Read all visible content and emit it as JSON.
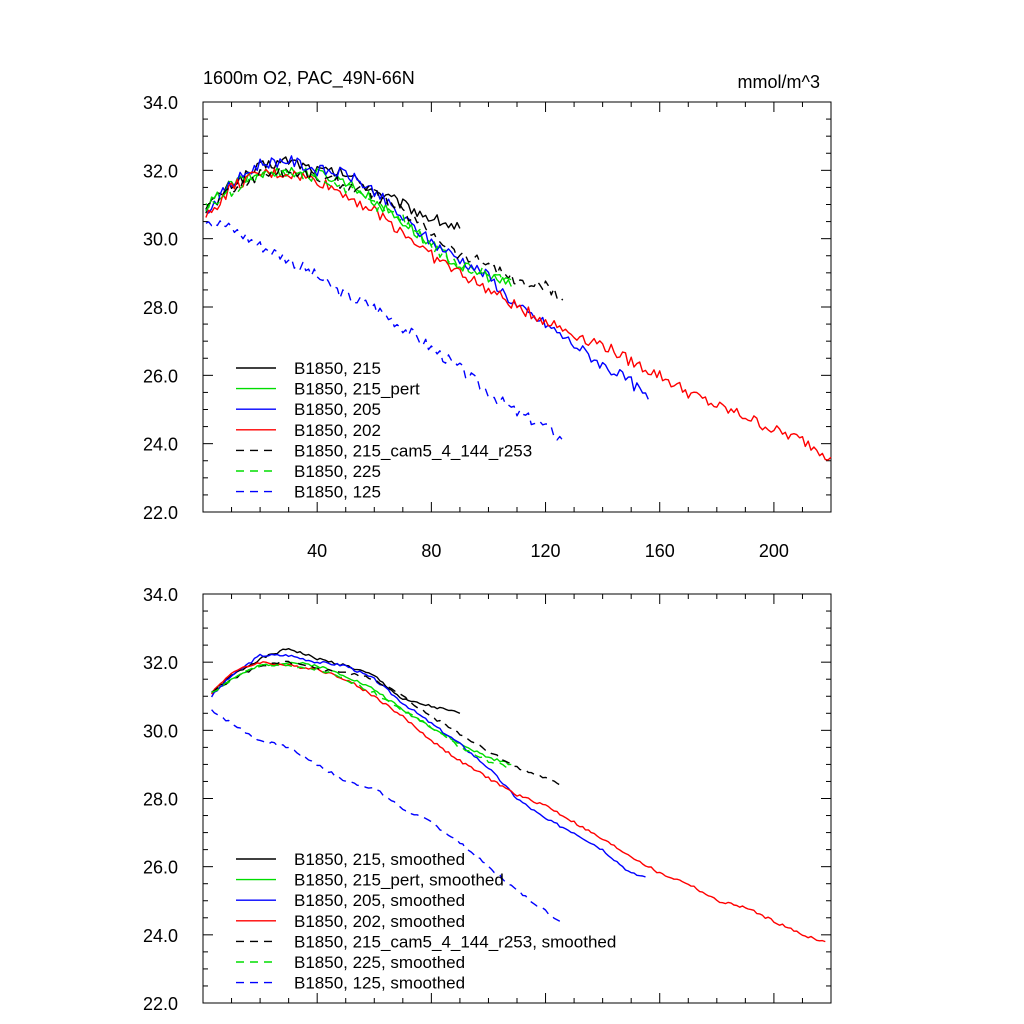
{
  "chart_data": [
    {
      "type": "line",
      "title": "1600m O2, PAC_49N-66N",
      "unit_label": "mmol/m^3",
      "xlim": [
        0,
        220
      ],
      "ylim": [
        22.0,
        34.0
      ],
      "x_ticks": [
        40,
        80,
        120,
        160,
        200
      ],
      "x_tick_labels": [
        "40",
        "80",
        "120",
        "160",
        "200"
      ],
      "y_ticks": [
        22.0,
        24.0,
        26.0,
        28.0,
        30.0,
        32.0,
        34.0
      ],
      "y_tick_labels": [
        "22.0",
        "24.0",
        "26.0",
        "28.0",
        "30.0",
        "32.0",
        "34.0"
      ],
      "legend_position": "bottom-left",
      "series": [
        {
          "name": "B1850, 215",
          "color": "#000000",
          "dash": "solid",
          "x": [
            1,
            10,
            20,
            30,
            40,
            50,
            60,
            70,
            80,
            90
          ],
          "y": [
            30.9,
            31.6,
            32.1,
            32.3,
            32.0,
            31.9,
            31.4,
            31.0,
            30.6,
            30.3
          ]
        },
        {
          "name": "B1850, 215_pert",
          "color": "#00dd00",
          "dash": "solid",
          "x": [
            1,
            10,
            20,
            30,
            40,
            50,
            60,
            70,
            80,
            90,
            100,
            108
          ],
          "y": [
            30.9,
            31.6,
            31.9,
            32.0,
            31.9,
            31.7,
            31.1,
            30.5,
            29.8,
            29.2,
            28.9,
            28.6
          ]
        },
        {
          "name": "B1850, 205",
          "color": "#0000ff",
          "dash": "solid",
          "x": [
            1,
            10,
            20,
            30,
            40,
            50,
            60,
            70,
            80,
            90,
            100,
            110,
            120,
            130,
            140,
            150,
            156
          ],
          "y": [
            30.8,
            31.6,
            32.2,
            32.3,
            32.0,
            31.9,
            31.4,
            30.6,
            29.9,
            29.4,
            28.9,
            28.0,
            27.5,
            26.9,
            26.3,
            25.8,
            25.3
          ]
        },
        {
          "name": "B1850, 202",
          "color": "#ff0000",
          "dash": "solid",
          "x": [
            1,
            10,
            20,
            30,
            40,
            50,
            60,
            70,
            80,
            90,
            100,
            110,
            120,
            130,
            140,
            150,
            160,
            170,
            180,
            190,
            200,
            210,
            220
          ],
          "y": [
            30.6,
            31.5,
            31.9,
            31.9,
            31.7,
            31.3,
            30.8,
            30.2,
            29.5,
            29.0,
            28.5,
            28.0,
            27.6,
            27.2,
            26.9,
            26.4,
            26.0,
            25.5,
            25.1,
            24.8,
            24.4,
            24.1,
            23.6
          ]
        },
        {
          "name": "B1850, 215_cam5_4_144_r253",
          "color": "#000000",
          "dash": "dashed",
          "x": [
            1,
            10,
            20,
            30,
            40,
            50,
            60,
            70,
            80,
            90,
            100,
            110,
            120,
            126
          ],
          "y": [
            30.9,
            31.4,
            31.9,
            32.0,
            31.8,
            31.6,
            31.3,
            30.8,
            30.2,
            29.5,
            29.3,
            28.7,
            28.6,
            28.2
          ]
        },
        {
          "name": "B1850, 225",
          "color": "#00dd00",
          "dash": "dashed",
          "x": [
            1,
            10,
            20,
            30,
            40,
            50,
            60,
            70,
            80,
            90,
            100,
            108
          ],
          "y": [
            30.9,
            31.4,
            31.8,
            31.9,
            31.8,
            31.5,
            31.0,
            30.6,
            29.8,
            29.2,
            29.0,
            28.8
          ]
        },
        {
          "name": "B1850, 125",
          "color": "#0000ff",
          "dash": "dashed",
          "x": [
            1,
            10,
            20,
            30,
            40,
            50,
            60,
            70,
            80,
            90,
            100,
            110,
            120,
            126
          ],
          "y": [
            30.6,
            30.3,
            29.8,
            29.4,
            28.9,
            28.3,
            28.0,
            27.4,
            26.8,
            26.2,
            25.5,
            24.9,
            24.5,
            24.1
          ]
        }
      ]
    },
    {
      "type": "line",
      "xlim": [
        0,
        220
      ],
      "ylim": [
        22.0,
        34.0
      ],
      "y_ticks": [
        22.0,
        24.0,
        26.0,
        28.0,
        30.0,
        32.0,
        34.0
      ],
      "y_tick_labels": [
        "22.0",
        "24.0",
        "26.0",
        "28.0",
        "30.0",
        "32.0",
        "34.0"
      ],
      "legend_position": "bottom-left",
      "series": [
        {
          "name": "B1850, 215, smoothed",
          "color": "#000000",
          "dash": "solid",
          "x": [
            3,
            10,
            20,
            30,
            40,
            50,
            60,
            70,
            80,
            90
          ],
          "y": [
            31.1,
            31.6,
            32.1,
            32.4,
            32.1,
            31.9,
            31.6,
            30.9,
            30.7,
            30.5
          ]
        },
        {
          "name": "B1850, 215_pert, smoothed",
          "color": "#00dd00",
          "dash": "solid",
          "x": [
            3,
            10,
            20,
            30,
            40,
            50,
            60,
            70,
            80,
            90,
            100,
            108
          ],
          "y": [
            31.1,
            31.5,
            31.9,
            32.0,
            31.9,
            31.6,
            31.2,
            30.6,
            30.1,
            29.6,
            29.2,
            29.0
          ]
        },
        {
          "name": "B1850, 205, smoothed",
          "color": "#0000ff",
          "dash": "solid",
          "x": [
            3,
            10,
            20,
            30,
            40,
            50,
            60,
            70,
            80,
            90,
            100,
            110,
            120,
            130,
            140,
            150,
            155
          ],
          "y": [
            31.0,
            31.6,
            32.2,
            32.2,
            32.0,
            31.9,
            31.5,
            30.8,
            30.2,
            29.6,
            28.9,
            28.0,
            27.4,
            27.0,
            26.5,
            25.8,
            25.7
          ]
        },
        {
          "name": "B1850, 202, smoothed",
          "color": "#ff0000",
          "dash": "solid",
          "x": [
            3,
            10,
            20,
            30,
            40,
            50,
            60,
            70,
            80,
            90,
            100,
            110,
            120,
            130,
            140,
            150,
            160,
            170,
            180,
            190,
            200,
            210,
            218
          ],
          "y": [
            31.1,
            31.7,
            32.0,
            31.9,
            31.8,
            31.5,
            31.0,
            30.4,
            29.7,
            29.1,
            28.6,
            28.1,
            27.8,
            27.3,
            26.8,
            26.3,
            25.8,
            25.5,
            25.0,
            24.8,
            24.4,
            24.0,
            23.8
          ]
        },
        {
          "name": "B1850, 215_cam5_4_144_r253, smoothed",
          "color": "#000000",
          "dash": "dashed",
          "x": [
            3,
            10,
            20,
            30,
            40,
            50,
            60,
            70,
            80,
            90,
            100,
            110,
            120,
            125
          ],
          "y": [
            31.1,
            31.5,
            31.9,
            32.0,
            31.8,
            31.7,
            31.5,
            31.0,
            30.4,
            29.9,
            29.4,
            28.9,
            28.6,
            28.4
          ]
        },
        {
          "name": "B1850, 225, smoothed",
          "color": "#00dd00",
          "dash": "dashed",
          "x": [
            3,
            10,
            20,
            30,
            40,
            50,
            60,
            70,
            80,
            90,
            100,
            108
          ],
          "y": [
            31.1,
            31.5,
            31.9,
            31.9,
            31.8,
            31.5,
            31.1,
            30.6,
            30.1,
            29.5,
            29.1,
            28.9
          ]
        },
        {
          "name": "B1850, 125, smoothed",
          "color": "#0000ff",
          "dash": "dashed",
          "x": [
            3,
            10,
            20,
            30,
            40,
            50,
            60,
            70,
            80,
            90,
            100,
            110,
            120,
            125
          ],
          "y": [
            30.6,
            30.2,
            29.7,
            29.5,
            29.0,
            28.5,
            28.3,
            27.7,
            27.3,
            26.7,
            26.0,
            25.3,
            24.7,
            24.4
          ]
        }
      ]
    }
  ]
}
